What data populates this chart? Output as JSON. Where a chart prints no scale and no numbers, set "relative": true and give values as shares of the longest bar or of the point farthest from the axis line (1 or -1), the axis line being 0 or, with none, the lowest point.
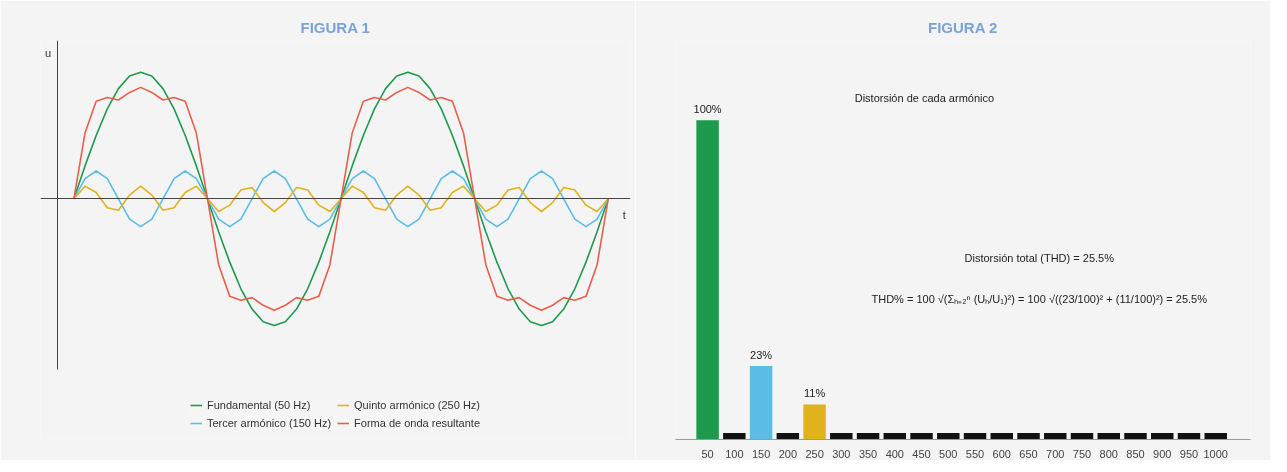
{
  "chart_data": [
    {
      "type": "line",
      "title": "FIGURA 1",
      "xlabel": "t",
      "ylabel": "u",
      "relative": true,
      "legend": "bottom",
      "marker": "none",
      "line_style": "solid",
      "categories": [
        null,
        null,
        null,
        null,
        null,
        null,
        null,
        null,
        null,
        null,
        null,
        null,
        null,
        null,
        null,
        null,
        null,
        null,
        null,
        null,
        null,
        null,
        null,
        null,
        null,
        null,
        null,
        null,
        null,
        null,
        null,
        null,
        null,
        null,
        null,
        null,
        null,
        null,
        null,
        null,
        null,
        null,
        null,
        null,
        null,
        null,
        null,
        null,
        null
      ],
      "series": [
        {
          "name": "Fundamental (50 Hz)",
          "color": "#1e9a4e",
          "values": [
            0,
            0.26,
            0.5,
            0.71,
            0.87,
            0.97,
            1,
            0.97,
            0.87,
            0.71,
            0.5,
            0.26,
            0,
            -0.26,
            -0.5,
            -0.71,
            -0.87,
            -0.97,
            -1,
            -0.97,
            -0.87,
            -0.71,
            -0.5,
            -0.26,
            0,
            0.26,
            0.5,
            0.71,
            0.87,
            0.97,
            1,
            0.97,
            0.87,
            0.71,
            0.5,
            0.26,
            0,
            -0.26,
            -0.5,
            -0.71,
            -0.87,
            -0.97,
            -1,
            -0.97,
            -0.87,
            -0.71,
            -0.5,
            -0.26,
            0
          ]
        },
        {
          "name": "Tercer armónico (150 Hz)",
          "color": "#5bbde6",
          "values": [
            0,
            0.16,
            0.22,
            0.16,
            0,
            -0.16,
            -0.22,
            -0.16,
            0,
            0.16,
            0.22,
            0.16,
            0,
            -0.16,
            -0.22,
            -0.16,
            0,
            0.16,
            0.22,
            0.16,
            0,
            -0.16,
            -0.22,
            -0.16,
            0,
            0.16,
            0.22,
            0.16,
            0,
            -0.16,
            -0.22,
            -0.16,
            0,
            0.16,
            0.22,
            0.16,
            0,
            -0.16,
            -0.22,
            -0.16,
            0,
            0.16,
            0.22,
            0.16,
            0,
            -0.16,
            -0.22,
            -0.16,
            0
          ]
        },
        {
          "name": "Quinto armónico (250 Hz)",
          "color": "#e0b31e",
          "values": [
            0,
            0.1,
            0.05,
            -0.07,
            -0.09,
            0.03,
            0.1,
            0.03,
            -0.09,
            -0.07,
            0.05,
            0.1,
            0,
            -0.1,
            -0.05,
            0.07,
            0.09,
            -0.03,
            -0.1,
            -0.03,
            0.09,
            0.07,
            -0.05,
            -0.1,
            0,
            0.1,
            0.05,
            -0.07,
            -0.09,
            0.03,
            0.1,
            0.03,
            -0.09,
            -0.07,
            0.05,
            0.1,
            0,
            -0.1,
            -0.05,
            0.07,
            0.09,
            -0.03,
            -0.1,
            -0.03,
            0.09,
            0.07,
            -0.05,
            -0.1,
            0
          ]
        },
        {
          "name": "Forma de onda resultante",
          "color": "#e8604c",
          "values": [
            0,
            0.52,
            0.77,
            0.8,
            0.78,
            0.84,
            0.88,
            0.84,
            0.78,
            0.8,
            0.77,
            0.52,
            0,
            -0.52,
            -0.77,
            -0.8,
            -0.78,
            -0.84,
            -0.88,
            -0.84,
            -0.78,
            -0.8,
            -0.77,
            -0.52,
            0,
            0.52,
            0.77,
            0.8,
            0.78,
            0.84,
            0.88,
            0.84,
            0.78,
            0.8,
            0.77,
            0.52,
            0,
            -0.52,
            -0.77,
            -0.8,
            -0.78,
            -0.84,
            -0.88,
            -0.84,
            -0.78,
            -0.8,
            -0.77,
            -0.52,
            0
          ]
        }
      ]
    },
    {
      "type": "bar",
      "title": "FIGURA 2",
      "categories": [
        "50",
        "100",
        "150",
        "200",
        "250",
        "300",
        "350",
        "400",
        "450",
        "500",
        "550",
        "600",
        "650",
        "700",
        "750",
        "800",
        "850",
        "900",
        "950",
        "1000"
      ],
      "values": [
        100,
        2,
        23,
        2,
        11,
        2,
        2,
        2,
        2,
        2,
        2,
        2,
        2,
        2,
        2,
        2,
        2,
        2,
        2,
        2
      ],
      "colors": [
        "#1e9a4e",
        "#111111",
        "#5bbde6",
        "#111111",
        "#e0b31e",
        "#111111",
        "#111111",
        "#111111",
        "#111111",
        "#111111",
        "#111111",
        "#111111",
        "#111111",
        "#111111",
        "#111111",
        "#111111",
        "#111111",
        "#111111",
        "#111111",
        "#111111"
      ],
      "value_labels": [
        "100%",
        null,
        "23%",
        null,
        "11%",
        null,
        null,
        null,
        null,
        null,
        null,
        null,
        null,
        null,
        null,
        null,
        null,
        null,
        null,
        null
      ],
      "tick_labels": "x",
      "annotations": [
        "Distorsión de cada armónico",
        "Distorsión total (THD) = 25.5%",
        "THD% = 100 √(Σₕ₌₂ⁿ (Uₕ/U₁)²) = 100 √((23/100)² + (11/100)²) = 25.5%"
      ]
    }
  ]
}
